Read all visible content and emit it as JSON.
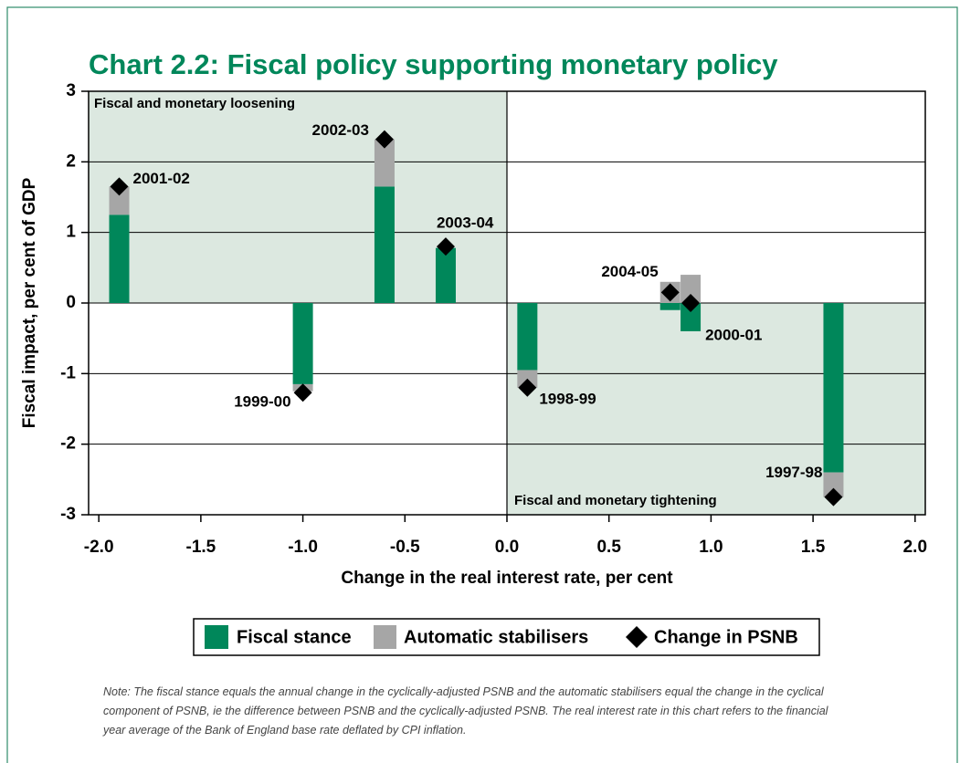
{
  "chart_data": {
    "type": "bar",
    "title": "Chart 2.2: Fiscal policy supporting monetary policy",
    "x_label": "Change in the real interest rate, per cent",
    "y_label": "Fiscal impact, per cent of GDP",
    "annotations": [
      "Fiscal and monetary loosening",
      "Fiscal and monetary tightening"
    ],
    "x": [
      -1.9,
      -1.0,
      -0.6,
      -0.3,
      0.1,
      0.8,
      0.9,
      1.6
    ],
    "labels": [
      "2001-02",
      "1999-00",
      "2002-03",
      "2003-04",
      "1998-99",
      "2004-05",
      "2000-01",
      "1997-98"
    ],
    "series": [
      {
        "name": "Fiscal stance",
        "color": "#00875a",
        "values": [
          1.25,
          -1.15,
          1.65,
          0.78,
          -0.95,
          -0.1,
          -0.4,
          -2.4
        ]
      },
      {
        "name": "Automatic stabilisers",
        "color": "#a6a6a6",
        "values": [
          0.4,
          -0.1,
          0.67,
          0.0,
          -0.25,
          0.3,
          0.4,
          -0.35
        ]
      },
      {
        "name": "Change in PSNB",
        "color": "#000000",
        "values": [
          1.65,
          -1.27,
          2.32,
          0.8,
          -1.2,
          0.15,
          0.0,
          -2.75
        ]
      }
    ],
    "xlim": [
      -2.05,
      2.05
    ],
    "xticks": [
      {
        "value": -2,
        "label": "-2.0"
      },
      -1.5,
      {
        "value": -1,
        "label": "-1.0"
      },
      -0.5,
      {
        "value": 0,
        "label": "0.0"
      },
      0.5,
      {
        "value": 1,
        "label": "1.0"
      },
      1.5,
      {
        "value": 2,
        "label": "2.0"
      }
    ],
    "ylim": [
      -3,
      3
    ],
    "yticks": [
      -3,
      -2,
      -1,
      0,
      1,
      2,
      3
    ],
    "grid": true,
    "note": "Note: The fiscal stance equals the annual change in the cyclically-adjusted PSNB and the automatic stabilisers equal the change in the cyclical component of PSNB, ie the difference between PSNB and the cyclically-adjusted PSNB. The real interest rate in this chart refers to the financial year average of the Bank of England base rate deflated by CPI inflation."
  }
}
